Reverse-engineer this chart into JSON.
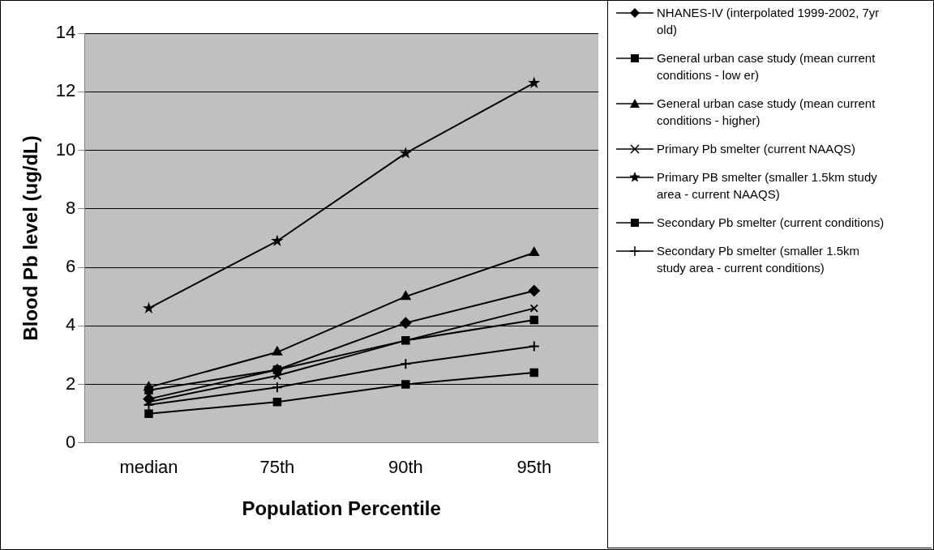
{
  "chart_data": {
    "type": "line",
    "xlabel": "Population Percentile",
    "ylabel": "Blood Pb level (ug/dL)",
    "categories": [
      "median",
      "75th",
      "90th",
      "95th"
    ],
    "ylim": [
      0,
      14
    ],
    "yticks": [
      0,
      2,
      4,
      6,
      8,
      10,
      12,
      14
    ],
    "grid": "y",
    "legend": "right",
    "line_style": "solid",
    "series": [
      {
        "name": "NHANES-IV (interpolated 1999-2002, 7yr old)",
        "color": "#000000",
        "marker": "diamond",
        "values": [
          1.5,
          2.5,
          4.1,
          5.2
        ]
      },
      {
        "name": "General urban case study (mean current conditions - low er)",
        "color": "#000000",
        "marker": "square",
        "values": [
          1.8,
          2.5,
          3.5,
          4.2
        ]
      },
      {
        "name": "General urban case study (mean current conditions - higher)",
        "color": "#000000",
        "marker": "triangle",
        "values": [
          1.9,
          3.1,
          5.0,
          6.5
        ]
      },
      {
        "name": "Primary Pb smelter (current NAAQS)",
        "color": "#000000",
        "marker": "x",
        "values": [
          1.4,
          2.3,
          3.5,
          4.6
        ]
      },
      {
        "name": "Primary PB smelter (smaller 1.5km study area - current NAAQS)",
        "color": "#000000",
        "marker": "star",
        "values": [
          4.6,
          6.9,
          9.9,
          12.3
        ]
      },
      {
        "name": "Secondary Pb smelter (current conditions)",
        "color": "#000000",
        "marker": "square",
        "values": [
          1.0,
          1.4,
          2.0,
          2.4
        ]
      },
      {
        "name": "Secondary Pb smelter (smaller 1.5km study area - current conditions)",
        "color": "#000000",
        "marker": "cross",
        "values": [
          1.3,
          1.9,
          2.7,
          3.3
        ]
      }
    ]
  }
}
